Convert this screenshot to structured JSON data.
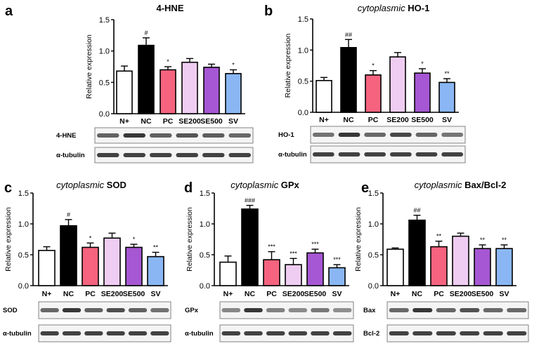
{
  "figure": {
    "panels": [
      "a",
      "b",
      "c",
      "d",
      "e"
    ]
  },
  "colors": {
    "N+": "#ffffff",
    "NC": "#000000",
    "PC": "#f5637e",
    "SE200": "#efcdf2",
    "SE500": "#a657d3",
    "SV": "#8ab7f4"
  },
  "chart_data": [
    {
      "panel": "a",
      "type": "bar",
      "title_prefix": "",
      "title_main": "4-HNE",
      "ylabel": "Relative expression",
      "ylim": [
        0,
        1.5
      ],
      "yticks": [
        "0.0",
        "0.5",
        "1.0",
        "1.5"
      ],
      "categories": [
        "N+",
        "NC",
        "PC",
        "SE200",
        "SE500",
        "SV"
      ],
      "values": [
        0.68,
        1.09,
        0.7,
        0.82,
        0.74,
        0.64
      ],
      "errors": [
        0.08,
        0.12,
        0.05,
        0.06,
        0.05,
        0.06
      ],
      "significance": [
        "",
        "#",
        "*",
        "",
        "",
        "*"
      ],
      "blot_labels": [
        "4-HNE",
        "α-tubulin"
      ]
    },
    {
      "panel": "b",
      "type": "bar",
      "title_prefix": "cytoplasmic",
      "title_main": "HO-1",
      "ylabel": "Relative expression",
      "ylim": [
        0,
        1.5
      ],
      "yticks": [
        "0.0",
        "0.5",
        "1.0",
        "1.5"
      ],
      "categories": [
        "N+",
        "NC",
        "PC",
        "SE200",
        "SE500",
        "SV"
      ],
      "values": [
        0.51,
        1.04,
        0.6,
        0.89,
        0.63,
        0.48
      ],
      "errors": [
        0.05,
        0.13,
        0.07,
        0.07,
        0.07,
        0.06
      ],
      "significance": [
        "",
        "##",
        "*",
        "",
        "*",
        "**"
      ],
      "blot_labels": [
        "HO-1",
        "α-tubulin"
      ]
    },
    {
      "panel": "c",
      "type": "bar",
      "title_prefix": "cytoplasmic",
      "title_main": "SOD",
      "ylabel": "Relative expression",
      "ylim": [
        0,
        1.5
      ],
      "yticks": [
        "0.0",
        "0.5",
        "1.0",
        "1.5"
      ],
      "categories": [
        "N+",
        "NC",
        "PC",
        "SE200",
        "SE500",
        "SV"
      ],
      "values": [
        0.57,
        0.97,
        0.62,
        0.77,
        0.62,
        0.47
      ],
      "errors": [
        0.06,
        0.1,
        0.07,
        0.08,
        0.05,
        0.07
      ],
      "significance": [
        "",
        "#",
        "*",
        "",
        "*",
        "**"
      ],
      "blot_labels": [
        "SOD",
        "α-tubulin"
      ]
    },
    {
      "panel": "d",
      "type": "bar",
      "title_prefix": "cytoplasmic",
      "title_main": "GPx",
      "ylabel": "Relative expression",
      "ylim": [
        0,
        1.5
      ],
      "yticks": [
        "0.0",
        "0.5",
        "1.0",
        "1.5"
      ],
      "categories": [
        "N+",
        "NC",
        "PC",
        "SE200",
        "SE500",
        "SV"
      ],
      "values": [
        0.38,
        1.24,
        0.42,
        0.34,
        0.53,
        0.29
      ],
      "errors": [
        0.1,
        0.06,
        0.13,
        0.1,
        0.06,
        0.05
      ],
      "significance": [
        "",
        "###",
        "***",
        "***",
        "***",
        "***"
      ],
      "blot_labels": [
        "GPx",
        "α-tubulin"
      ]
    },
    {
      "panel": "e",
      "type": "bar",
      "title_prefix": "cytoplasmic",
      "title_main": "Bax/Bcl-2",
      "ylabel": "Relative expression",
      "ylim": [
        0,
        1.5
      ],
      "yticks": [
        "0.0",
        "0.5",
        "1.0",
        "1.5"
      ],
      "categories": [
        "N+",
        "NC",
        "PC",
        "SE200",
        "SE500",
        "SV"
      ],
      "values": [
        0.59,
        1.06,
        0.63,
        0.8,
        0.6,
        0.6
      ],
      "errors": [
        0.02,
        0.08,
        0.09,
        0.05,
        0.06,
        0.06
      ],
      "significance": [
        "",
        "##",
        "**",
        "",
        "**",
        "**"
      ],
      "blot_labels": [
        "Bax",
        "Bcl-2"
      ]
    }
  ]
}
